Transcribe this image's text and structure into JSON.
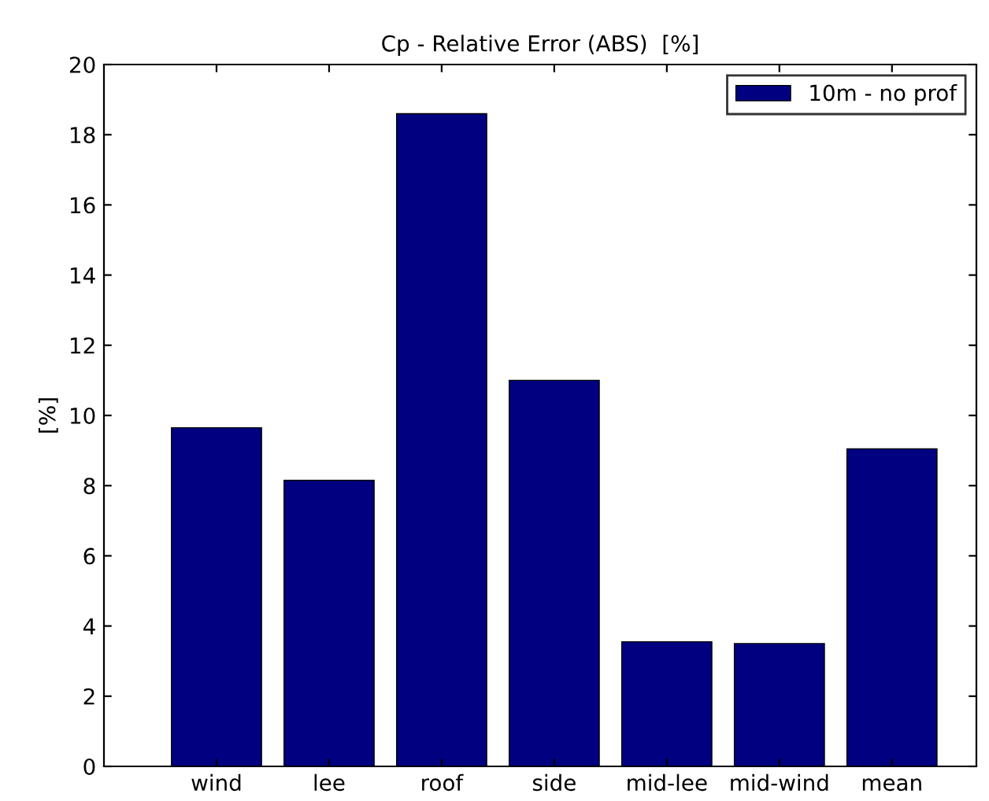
{
  "chart_data": {
    "type": "bar",
    "title": "Cp - Relative Error (ABS)  [%]",
    "ylabel": "[%]",
    "categories": [
      "wind",
      "lee",
      "roof",
      "side",
      "mid-lee",
      "mid-wind",
      "mean"
    ],
    "series": [
      {
        "name": "10m - no prof",
        "color": "#000080",
        "values": [
          9.65,
          8.15,
          18.6,
          11.0,
          3.55,
          3.5,
          9.05
        ]
      }
    ],
    "ylim": [
      0,
      20
    ],
    "yticks": [
      0,
      2,
      4,
      6,
      8,
      10,
      12,
      14,
      16,
      18,
      20
    ],
    "grid": false,
    "legend": "top right"
  }
}
